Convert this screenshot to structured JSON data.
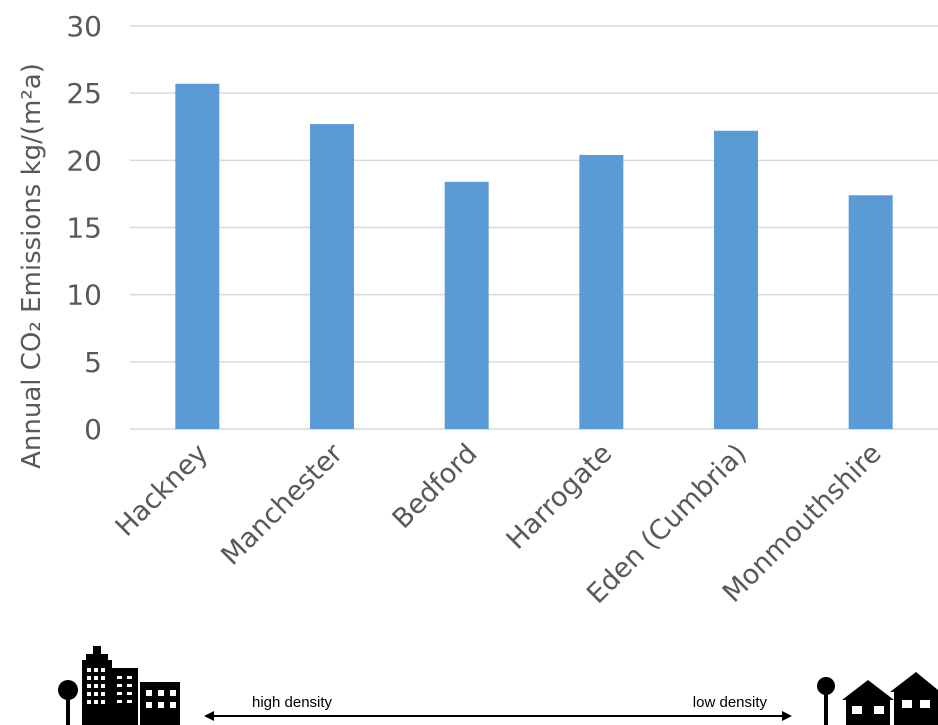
{
  "chart_data": {
    "type": "bar",
    "title": "",
    "ylabel": "Annual CO₂ Emissions kg/(m²a)",
    "xlabel": "",
    "categories": [
      "Hackney",
      "Manchester",
      "Bedford",
      "Harrogate",
      "Eden (Cumbria)",
      "Monmouthshire"
    ],
    "values": [
      25.7,
      22.7,
      18.4,
      20.4,
      22.2,
      17.4
    ],
    "ylim": [
      0,
      30
    ],
    "yticks": [
      0,
      5,
      10,
      15,
      20,
      25,
      30
    ],
    "grid": true,
    "legend": "none",
    "bar_color": "#5B9BD5",
    "gridline_color": "#D9D9D9"
  },
  "density_scale": {
    "left_label": "high density",
    "right_label": "low density",
    "left_icon": "city-buildings-icon",
    "right_icon": "house-with-tree-icon"
  }
}
